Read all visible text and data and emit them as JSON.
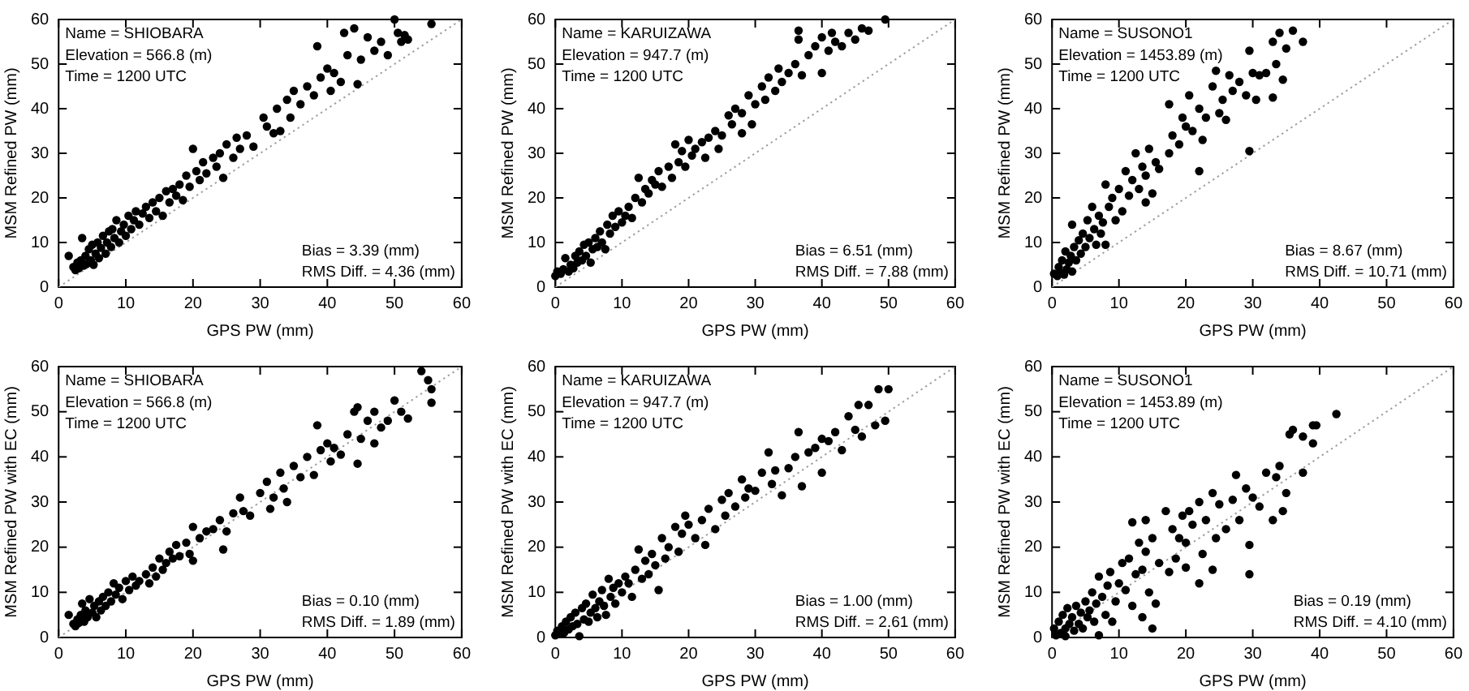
{
  "chart_data": [
    {
      "type": "scatter",
      "xlabel": "GPS PW (mm)",
      "ylabel": "MSM Refined PW (mm)",
      "xlim": [
        0,
        60
      ],
      "ylim": [
        0,
        60
      ],
      "xticks": [
        0,
        10,
        20,
        30,
        40,
        50,
        60
      ],
      "yticks": [
        0,
        10,
        20,
        30,
        40,
        50,
        60
      ],
      "marker": "circle",
      "annotations": [
        "Name = SHIOBARA",
        "Elevation = 566.8 (m)",
        "Time = 1200 UTC",
        "Bias = 3.39 (mm)",
        "RMS Diff. = 4.36 (mm)"
      ],
      "series": [
        {
          "type": "line",
          "color": "#a0a0a0",
          "line_style": "dotted",
          "marker": "none",
          "x": [
            0,
            60
          ],
          "values": [
            0,
            60
          ]
        },
        {
          "type": "scatter",
          "color": "#000000",
          "x": [
            1.5,
            2.2,
            2.5,
            2.8,
            3,
            3.3,
            3.5,
            3.7,
            4,
            4.2,
            4.5,
            4.8,
            5,
            5.2,
            5.5,
            5.8,
            6,
            6.3,
            6.6,
            7,
            7.2,
            7.5,
            7.8,
            8,
            8.3,
            8.6,
            9,
            9.3,
            9.7,
            10,
            10.4,
            10.8,
            11.2,
            11.5,
            12,
            12.5,
            13,
            13.5,
            14,
            14.5,
            15,
            15.5,
            16,
            16.5,
            17,
            17.5,
            18,
            18.5,
            19,
            19.5,
            20,
            20.5,
            21,
            21.5,
            22,
            23,
            23.5,
            24,
            24.5,
            25,
            26,
            26.5,
            27,
            28,
            29,
            30.5,
            31,
            32,
            32.5,
            33,
            34,
            34.5,
            35,
            36,
            37,
            38,
            38.5,
            39,
            40,
            40.5,
            41,
            42,
            42.5,
            43,
            44,
            44.5,
            45,
            46,
            47,
            48,
            49,
            50,
            50.5,
            51,
            51.5,
            52,
            55.5
          ],
          "values": [
            7,
            4.5,
            3.8,
            5.5,
            4.2,
            6,
            11,
            4.8,
            7,
            5.2,
            8.5,
            6,
            9.5,
            5,
            7.5,
            10,
            6.5,
            8.8,
            11.5,
            7.5,
            10,
            12.5,
            9,
            13,
            11,
            15,
            10,
            12.5,
            14,
            11.5,
            16,
            13,
            15,
            17,
            14,
            16.5,
            18,
            15.5,
            19,
            17,
            20,
            16,
            21.5,
            19,
            22,
            20.5,
            23,
            19.5,
            25,
            22.5,
            31,
            26,
            24,
            28,
            25.5,
            29,
            27,
            30,
            24.5,
            32,
            29,
            33.5,
            31,
            34,
            31.5,
            38,
            36,
            34.5,
            40,
            35,
            42,
            38,
            44,
            41,
            45,
            43,
            54,
            47,
            49,
            44,
            48,
            46,
            57,
            52,
            58,
            45.5,
            51,
            56,
            53,
            55,
            52,
            60,
            57,
            55,
            56.5,
            55.5,
            59
          ]
        }
      ]
    },
    {
      "type": "scatter",
      "xlabel": "GPS PW (mm)",
      "ylabel": "MSM Refined PW (mm)",
      "xlim": [
        0,
        60
      ],
      "ylim": [
        0,
        60
      ],
      "xticks": [
        0,
        10,
        20,
        30,
        40,
        50,
        60
      ],
      "yticks": [
        0,
        10,
        20,
        30,
        40,
        50,
        60
      ],
      "marker": "circle",
      "annotations": [
        "Name = KARUIZAWA",
        "Elevation = 947.7 (m)",
        "Time = 1200 UTC",
        "Bias = 6.51 (mm)",
        "RMS Diff. = 7.88 (mm)"
      ],
      "series": [
        {
          "type": "line",
          "color": "#a0a0a0",
          "line_style": "dotted",
          "marker": "none",
          "x": [
            0,
            60
          ],
          "values": [
            0,
            60
          ]
        },
        {
          "type": "scatter",
          "color": "#000000",
          "x": [
            0,
            0.3,
            0.8,
            1.2,
            1.5,
            2,
            2.3,
            2.7,
            3,
            3.3,
            3.6,
            4,
            4.3,
            4.6,
            5,
            5.3,
            5.6,
            6,
            6.3,
            6.7,
            7,
            7.5,
            7.8,
            8.2,
            8.6,
            9,
            9.5,
            10,
            10.5,
            11,
            11.5,
            12,
            12.5,
            13,
            13.5,
            14,
            14.5,
            15,
            15.5,
            16,
            17,
            17.5,
            18,
            18.5,
            19,
            19.5,
            20,
            20.5,
            21,
            22,
            22.5,
            23,
            24,
            24.5,
            25,
            26,
            26.5,
            27,
            28,
            28,
            29,
            29.5,
            30,
            31,
            31.5,
            32,
            33,
            33.5,
            34,
            35,
            36,
            36.5,
            36.5,
            37,
            38,
            39,
            40,
            40,
            41,
            41.5,
            42,
            43,
            44,
            45,
            46,
            47,
            49.5
          ],
          "values": [
            2.5,
            3.5,
            3,
            4,
            6.5,
            3.5,
            5,
            4.2,
            7,
            5.5,
            8,
            6,
            9.5,
            7,
            10,
            5.5,
            8.5,
            11,
            9,
            12.5,
            10,
            8.5,
            14,
            12,
            16,
            13.5,
            17,
            14.5,
            16,
            18,
            15.5,
            20,
            24.5,
            19,
            22,
            21,
            24,
            23,
            26,
            22.5,
            27,
            24.5,
            32,
            28,
            30.5,
            27,
            33,
            29.5,
            31,
            32.5,
            29,
            33.5,
            35,
            31,
            34,
            38.5,
            36.5,
            40,
            34.5,
            39,
            43,
            36.5,
            41,
            45,
            42,
            47,
            44,
            49,
            46,
            48,
            50,
            57.5,
            55.5,
            47.5,
            52,
            54,
            56,
            48,
            53,
            57,
            55,
            54,
            57,
            55.5,
            58,
            57.5,
            60
          ]
        }
      ]
    },
    {
      "type": "scatter",
      "xlabel": "GPS PW (mm)",
      "ylabel": "MSM Refined PW (mm)",
      "xlim": [
        0,
        60
      ],
      "ylim": [
        0,
        60
      ],
      "xticks": [
        0,
        10,
        20,
        30,
        40,
        50,
        60
      ],
      "yticks": [
        0,
        10,
        20,
        30,
        40,
        50,
        60
      ],
      "marker": "circle",
      "annotations": [
        "Name = SUSONO1",
        "Elevation = 1453.89 (m)",
        "Time = 1200 UTC",
        "Bias = 8.67 (mm)",
        "RMS Diff. = 10.71 (mm)"
      ],
      "series": [
        {
          "type": "line",
          "color": "#a0a0a0",
          "line_style": "dotted",
          "marker": "none",
          "x": [
            0,
            60
          ],
          "values": [
            0,
            60
          ]
        },
        {
          "type": "scatter",
          "color": "#000000",
          "x": [
            0.3,
            0.8,
            1,
            1.3,
            1.5,
            1.8,
            2,
            2.2,
            2.5,
            2.8,
            3,
            3,
            3.3,
            3.6,
            4,
            4.3,
            4.6,
            5,
            5.3,
            5.6,
            6,
            6.3,
            6.6,
            7,
            7.3,
            7.6,
            8,
            8,
            8.5,
            9,
            9.5,
            10,
            10.5,
            11,
            11.5,
            12,
            12.5,
            13,
            13.5,
            14,
            14,
            14.5,
            15,
            15.5,
            16,
            17.5,
            17.5,
            18,
            19,
            19.5,
            20,
            20.5,
            21,
            22,
            22,
            22.5,
            23,
            24,
            24.5,
            25,
            25.5,
            26,
            26.5,
            27,
            28,
            29,
            29.5,
            29.5,
            30,
            30.5,
            31,
            32,
            33,
            33,
            33.5,
            34,
            34.5,
            35,
            36,
            37.5
          ],
          "values": [
            3,
            2.5,
            4.5,
            3.2,
            6,
            2.8,
            8,
            4,
            5.5,
            7,
            3.5,
            14,
            9,
            6,
            10.5,
            7.5,
            12,
            9,
            15,
            11,
            18,
            13,
            9.5,
            16,
            12,
            14.5,
            23,
            9.5,
            18,
            20,
            15,
            22,
            17,
            26,
            20.5,
            24,
            30,
            22,
            27,
            25,
            19,
            31,
            21,
            28,
            26.5,
            41,
            30,
            34,
            32,
            38,
            36,
            43,
            35,
            26,
            40,
            33,
            38,
            45,
            48.5,
            39,
            42,
            37.5,
            47.5,
            44,
            46,
            43,
            30.5,
            53,
            48,
            42,
            47.5,
            48,
            42.5,
            55,
            50,
            57,
            46.5,
            53.5,
            57.5,
            55
          ]
        }
      ]
    },
    {
      "type": "scatter",
      "xlabel": "GPS PW (mm)",
      "ylabel": "MSM Refined PW with EC (mm)",
      "xlim": [
        0,
        60
      ],
      "ylim": [
        0,
        60
      ],
      "xticks": [
        0,
        10,
        20,
        30,
        40,
        50,
        60
      ],
      "yticks": [
        0,
        10,
        20,
        30,
        40,
        50,
        60
      ],
      "marker": "circle",
      "annotations": [
        "Name = SHIOBARA",
        "Elevation = 566.8 (m)",
        "Time = 1200 UTC",
        "Bias = 0.10 (mm)",
        "RMS Diff. = 1.89 (mm)"
      ],
      "series": [
        {
          "type": "line",
          "color": "#a0a0a0",
          "line_style": "dotted",
          "marker": "none",
          "x": [
            0,
            60
          ],
          "values": [
            0,
            60
          ]
        },
        {
          "type": "scatter",
          "color": "#000000",
          "x": [
            1.5,
            2.2,
            2.5,
            2.8,
            3,
            3.3,
            3.5,
            3.8,
            4,
            4.3,
            4.6,
            5,
            5.3,
            5.6,
            6,
            6.3,
            6.6,
            7,
            7.4,
            7.8,
            8.2,
            8.5,
            9,
            9.5,
            10,
            10.5,
            11,
            11.5,
            12,
            13,
            13.5,
            14,
            14.5,
            15,
            15.5,
            16,
            16.5,
            17,
            17.5,
            18,
            19,
            19.5,
            20,
            20,
            21,
            22,
            23,
            24,
            24.5,
            25,
            26,
            27,
            27.5,
            28.5,
            30,
            31,
            31.5,
            32,
            33,
            33.5,
            34,
            35,
            36,
            37,
            38,
            38.5,
            39,
            40,
            40.5,
            41,
            42,
            43,
            44,
            44.5,
            44.5,
            45,
            46,
            47,
            47,
            48,
            49,
            50,
            51,
            52,
            54,
            55,
            55.5,
            55.5
          ],
          "values": [
            5,
            3,
            2.5,
            4,
            3.2,
            5,
            7.5,
            3.5,
            6,
            4.5,
            8.5,
            5.5,
            7,
            4.5,
            8,
            6,
            9,
            7,
            10,
            8,
            12,
            9.5,
            11,
            8.5,
            12.5,
            10.5,
            13.5,
            11.5,
            12.5,
            14,
            12,
            15.5,
            13.5,
            17.5,
            15,
            16.5,
            19,
            17.5,
            20.5,
            18,
            21,
            18.5,
            24.5,
            17,
            22,
            23.5,
            24,
            26,
            19.5,
            23.5,
            27.5,
            31,
            28,
            27,
            32,
            34.5,
            28.5,
            31,
            36.5,
            33,
            30,
            38,
            35.5,
            40,
            36,
            47,
            41.5,
            43,
            39,
            42,
            40.5,
            45,
            50,
            38.5,
            51,
            44,
            48,
            43,
            50,
            46.5,
            48,
            52.5,
            50,
            48.5,
            59,
            57,
            55,
            52
          ]
        }
      ]
    },
    {
      "type": "scatter",
      "xlabel": "GPS PW (mm)",
      "ylabel": "MSM Refined PW with EC (mm)",
      "xlim": [
        0,
        60
      ],
      "ylim": [
        0,
        60
      ],
      "xticks": [
        0,
        10,
        20,
        30,
        40,
        50,
        60
      ],
      "yticks": [
        0,
        10,
        20,
        30,
        40,
        50,
        60
      ],
      "marker": "circle",
      "annotations": [
        "Name = KARUIZAWA",
        "Elevation = 947.7 (m)",
        "Time = 1200 UTC",
        "Bias = 1.00 (mm)",
        "RMS Diff. = 2.61 (mm)"
      ],
      "series": [
        {
          "type": "line",
          "color": "#a0a0a0",
          "line_style": "dotted",
          "marker": "none",
          "x": [
            0,
            60
          ],
          "values": [
            0,
            60
          ]
        },
        {
          "type": "scatter",
          "color": "#000000",
          "x": [
            0,
            0.3,
            0.6,
            1,
            1.3,
            1.6,
            2,
            2.3,
            2.6,
            3,
            3.3,
            3.6,
            4,
            4.3,
            4.6,
            5,
            5.3,
            5.6,
            6,
            6.3,
            6.6,
            7,
            7.3,
            7.6,
            8,
            8.3,
            8.7,
            9,
            9.5,
            10,
            10.5,
            11,
            11.5,
            12,
            12.5,
            13,
            13.5,
            14,
            14.5,
            15,
            15.5,
            16,
            16.5,
            17,
            18,
            18.5,
            19,
            19.5,
            20,
            21,
            22,
            22.5,
            23,
            24,
            25,
            25.5,
            26,
            27,
            28,
            28.5,
            29,
            30,
            31,
            32,
            32.5,
            33,
            34,
            35,
            36,
            36.5,
            37,
            38,
            39,
            40,
            40,
            41,
            42,
            43,
            44,
            45,
            45.5,
            46,
            47,
            48,
            48.5,
            49.5,
            50
          ],
          "values": [
            0.5,
            1.5,
            0.8,
            2.5,
            1,
            3.5,
            1.8,
            4.5,
            2.5,
            5.5,
            3,
            0.3,
            6.5,
            4,
            7.5,
            3.5,
            5.5,
            9.5,
            6.5,
            4.5,
            8,
            10.5,
            7,
            5,
            13,
            9,
            11,
            7.5,
            12,
            10,
            13.5,
            12,
            9,
            15,
            19.5,
            13,
            17,
            14,
            18.5,
            16,
            10.5,
            22,
            17.5,
            20,
            24.5,
            19,
            23,
            27,
            25,
            22,
            26,
            20.5,
            28.5,
            24,
            30.5,
            27,
            32,
            29,
            35,
            31,
            33,
            32.5,
            36.5,
            41,
            34,
            37,
            31.5,
            37.5,
            40,
            45.5,
            33.5,
            41,
            42,
            44,
            36.5,
            43.5,
            45.5,
            41.5,
            49,
            46,
            51.5,
            44.5,
            51.5,
            47,
            55,
            48,
            55
          ]
        }
      ]
    },
    {
      "type": "scatter",
      "xlabel": "GPS PW (mm)",
      "ylabel": "MSM Refined PW with EC (mm)",
      "xlim": [
        0,
        60
      ],
      "ylim": [
        0,
        60
      ],
      "xticks": [
        0,
        10,
        20,
        30,
        40,
        50,
        60
      ],
      "yticks": [
        0,
        10,
        20,
        30,
        40,
        50,
        60
      ],
      "marker": "circle",
      "annotations": [
        "Name = SUSONO1",
        "Elevation = 1453.89 (m)",
        "Time = 1200 UTC",
        "Bias = 0.19 (mm)",
        "RMS Diff. = 4.10 (mm)"
      ],
      "series": [
        {
          "type": "line",
          "color": "#a0a0a0",
          "line_style": "dotted",
          "marker": "none",
          "x": [
            0,
            60
          ],
          "values": [
            0,
            60
          ]
        },
        {
          "type": "scatter",
          "color": "#000000",
          "x": [
            0.3,
            0.6,
            1,
            1.3,
            1.6,
            2,
            2,
            2.3,
            2.6,
            3,
            3.3,
            3.6,
            4,
            4.3,
            4.6,
            5,
            5.3,
            5.6,
            6,
            6.3,
            6.6,
            7,
            7,
            7.5,
            8,
            8.3,
            8.7,
            9,
            9.5,
            10,
            10.5,
            11,
            11.5,
            12,
            12,
            12.5,
            13,
            13.5,
            13.5,
            14,
            14,
            14.5,
            15,
            15,
            15.5,
            16,
            17,
            17.5,
            18,
            18.5,
            19,
            19.5,
            20,
            20,
            20.5,
            21,
            22,
            22,
            22.5,
            23,
            24,
            24,
            24.5,
            25,
            26,
            27,
            27.5,
            28,
            29,
            29.5,
            29.5,
            30,
            31,
            32,
            33,
            33.5,
            34,
            34.5,
            35,
            35.5,
            36,
            37.5,
            37.5,
            39,
            39,
            39.5,
            42.5
          ],
          "values": [
            2,
            0.5,
            3.5,
            1,
            5,
            2,
            0.3,
            6.5,
            3,
            4.5,
            1.5,
            7,
            3,
            5.5,
            2,
            8,
            4.5,
            6,
            10,
            3.5,
            7.5,
            0.5,
            13.5,
            9,
            5,
            11.5,
            14.5,
            3.5,
            8,
            12,
            16.5,
            10.5,
            17.5,
            25.5,
            7,
            14,
            21,
            4.5,
            15,
            26,
            19,
            10,
            2,
            22,
            7.5,
            16.5,
            28,
            14.5,
            24,
            17.5,
            22,
            27,
            21,
            15.5,
            28,
            25,
            12,
            30,
            18.5,
            26,
            32,
            15,
            22,
            29.5,
            24,
            30.5,
            36,
            26,
            33,
            14,
            20.5,
            31,
            29,
            36.5,
            26,
            35.5,
            38,
            28,
            32,
            45,
            46,
            36.5,
            44.5,
            43,
            47,
            47,
            49.5
          ]
        }
      ]
    }
  ]
}
